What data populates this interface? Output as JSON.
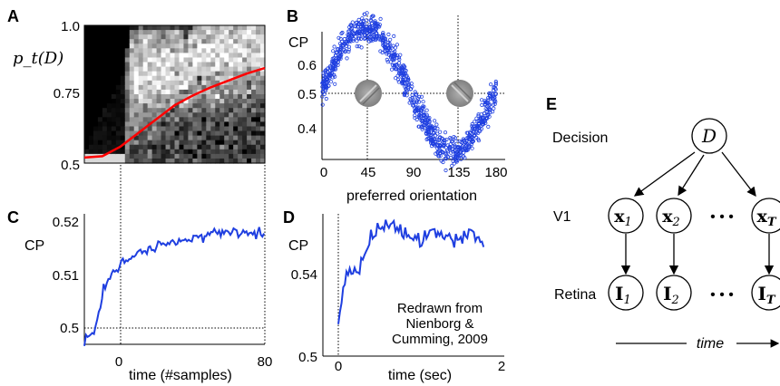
{
  "panels": {
    "A": {
      "label": "A",
      "ylabel": "p_t(D)",
      "yticks": [
        "1.0",
        "0.75",
        "0.5"
      ]
    },
    "B": {
      "label": "B",
      "ylabel": "CP",
      "xlabel": "preferred orientation",
      "xticks": [
        "0",
        "45",
        "90",
        "135",
        "180"
      ],
      "yticks": [
        "0.6",
        "0.5",
        "0.4"
      ]
    },
    "C": {
      "label": "C",
      "ylabel": "CP",
      "xlabel": "time (#samples)",
      "xticks": [
        "0",
        "80"
      ],
      "yticks": [
        "0.52",
        "0.51",
        "0.5"
      ]
    },
    "D": {
      "label": "D",
      "ylabel": "CP",
      "xlabel": "time (sec)",
      "xticks": [
        "0",
        "2"
      ],
      "yticks": [
        "0.54",
        "0.5"
      ],
      "annotation": [
        "Redrawn from",
        "Nienborg &",
        "Cumming, 2009"
      ]
    },
    "E": {
      "label": "E",
      "rows": [
        "Decision",
        "V1",
        "Retina"
      ],
      "decision_node": "D",
      "x_nodes": [
        "x",
        "x",
        "x"
      ],
      "x_subs": [
        "1",
        "2",
        "T"
      ],
      "i_nodes": [
        "I",
        "I",
        "I"
      ],
      "i_subs": [
        "1",
        "2",
        "T"
      ],
      "dots": "• • •",
      "time_label": "time"
    }
  },
  "chart_data": [
    {
      "panel": "A",
      "type": "heatmap",
      "ylim": [
        0.5,
        1.0
      ],
      "colors": {
        "line": "#ff0000"
      },
      "line": {
        "x": [
          0,
          0.1,
          0.2,
          0.3,
          0.4,
          0.5,
          0.6,
          0.7,
          0.8,
          0.9,
          1.0
        ],
        "y": [
          0.52,
          0.525,
          0.56,
          0.61,
          0.66,
          0.71,
          0.745,
          0.775,
          0.8,
          0.825,
          0.845
        ]
      }
    },
    {
      "panel": "B",
      "type": "scatter",
      "xlim": [
        0,
        180
      ],
      "ylim": [
        0.33,
        0.68
      ],
      "colors": {
        "points": "#1f3fe0"
      },
      "model": "CP = 0.5 + 0.15*cos(2*(theta-45deg))",
      "x": [
        0,
        15,
        30,
        45,
        60,
        75,
        90,
        105,
        120,
        135,
        150,
        165,
        180
      ],
      "y": [
        0.5,
        0.575,
        0.63,
        0.65,
        0.63,
        0.575,
        0.5,
        0.425,
        0.37,
        0.35,
        0.37,
        0.425,
        0.5
      ]
    },
    {
      "panel": "C",
      "type": "line",
      "xlim": [
        -10,
        80
      ],
      "ylim": [
        0.4975,
        0.5225
      ],
      "colors": {
        "line": "#1f3fe0"
      },
      "x": [
        -10,
        -5,
        0,
        5,
        10,
        20,
        30,
        40,
        50,
        60,
        70,
        80
      ],
      "y": [
        0.4985,
        0.4995,
        0.5085,
        0.5115,
        0.5135,
        0.5155,
        0.5165,
        0.5175,
        0.5185,
        0.519,
        0.519,
        0.5185
      ]
    },
    {
      "panel": "D",
      "type": "line",
      "xlim": [
        0,
        2
      ],
      "ylim": [
        0.5,
        0.56
      ],
      "colors": {
        "line": "#1f3fe0"
      },
      "x": [
        0,
        0.1,
        0.25,
        0.4,
        0.6,
        0.8,
        1.0,
        1.2,
        1.4,
        1.6,
        1.8
      ],
      "y": [
        0.516,
        0.536,
        0.537,
        0.55,
        0.556,
        0.552,
        0.548,
        0.553,
        0.549,
        0.552,
        0.548
      ]
    }
  ]
}
